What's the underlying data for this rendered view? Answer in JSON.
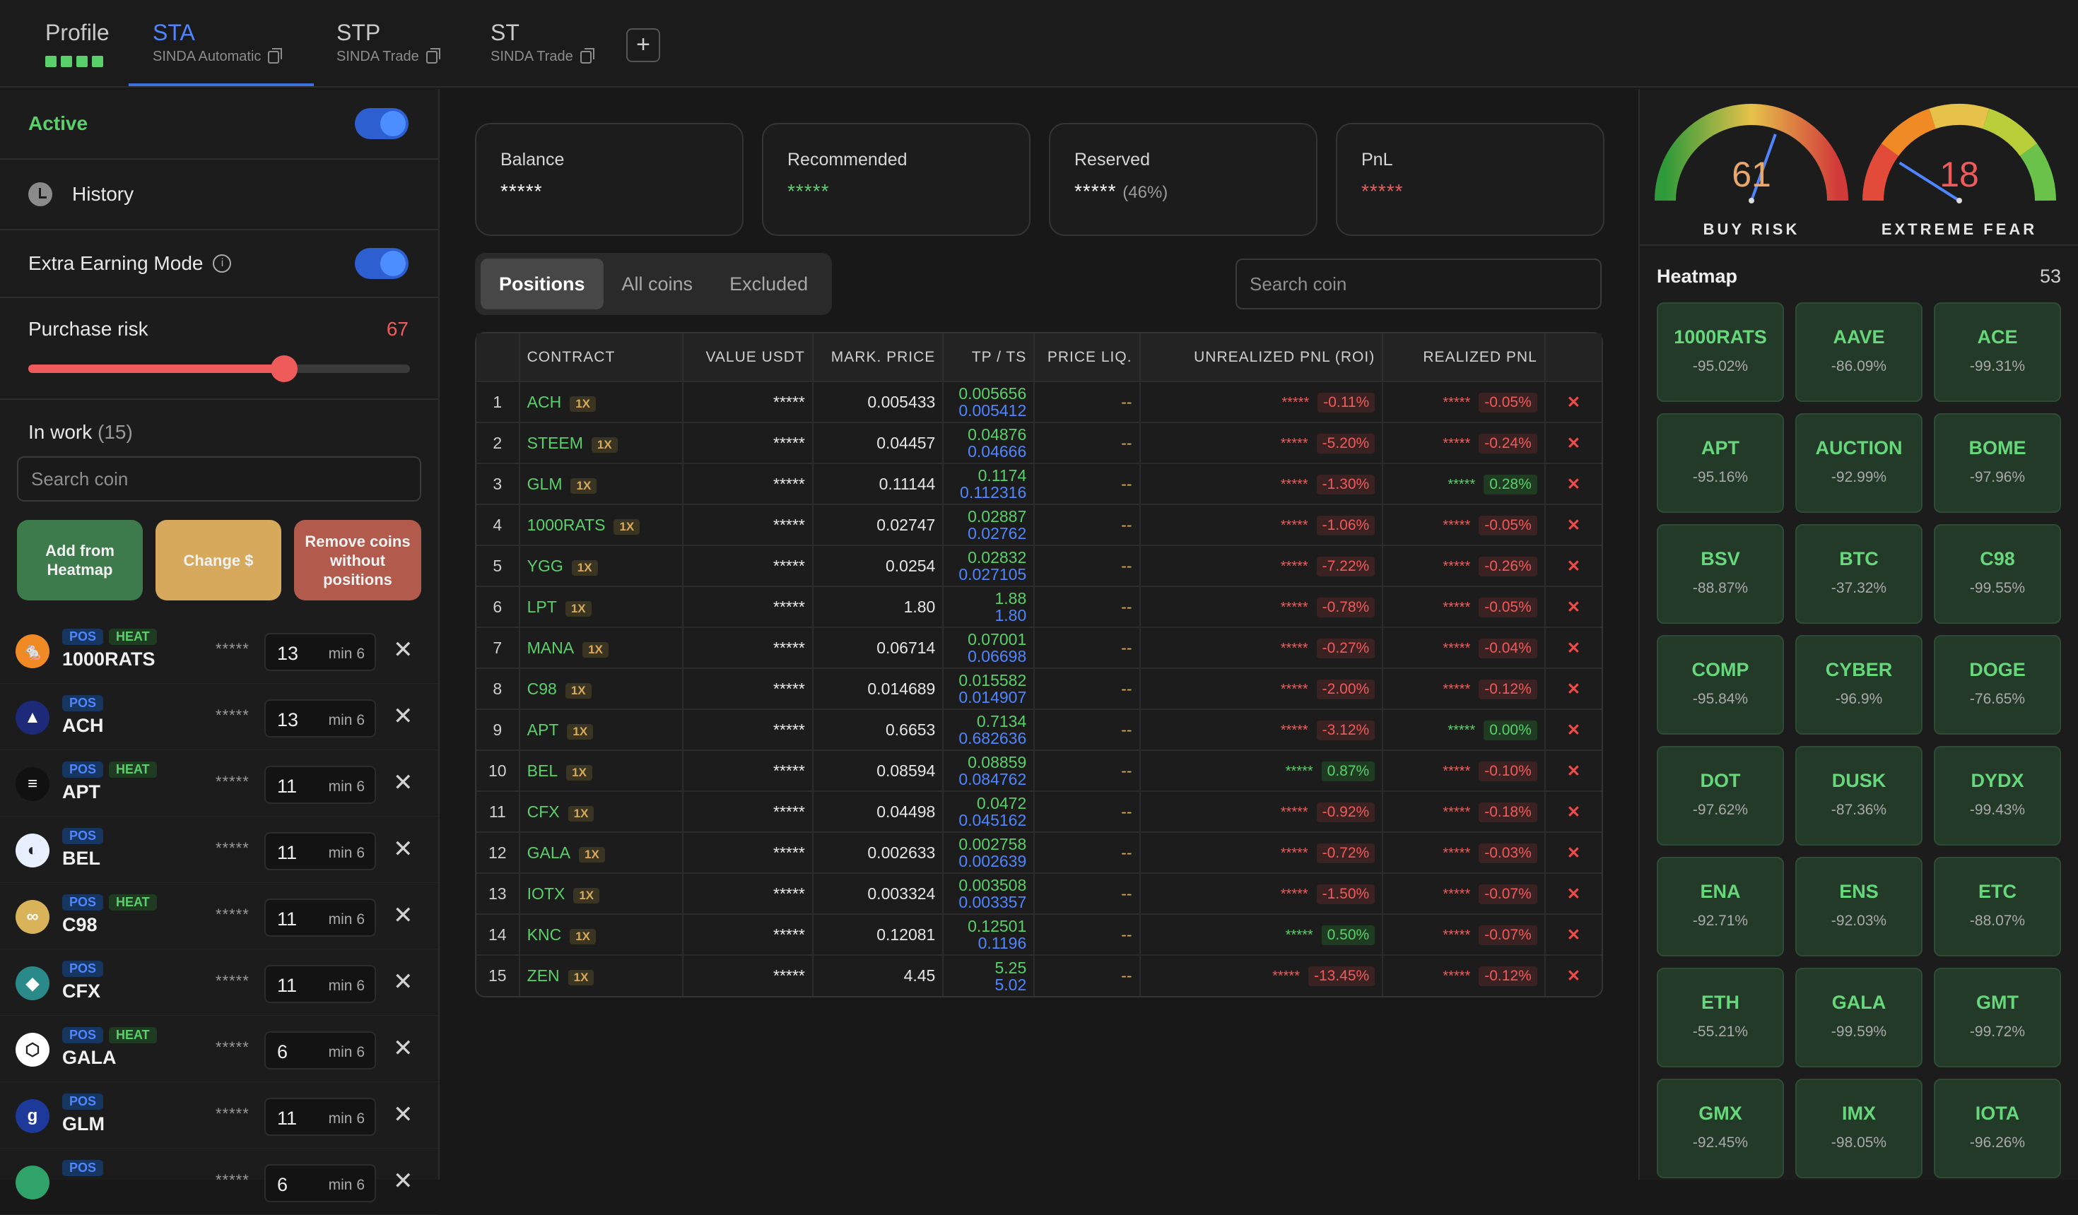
{
  "tabs": [
    {
      "title": "Profile",
      "subtitle": ""
    },
    {
      "title": "STA",
      "subtitle": "SINDA Automatic"
    },
    {
      "title": "STP",
      "subtitle": "SINDA Trade"
    },
    {
      "title": "ST",
      "subtitle": "SINDA Trade"
    }
  ],
  "add_tab_label": "+",
  "left": {
    "active_label": "Active",
    "history_label": "History",
    "extra_label": "Extra Earning Mode",
    "risk_label": "Purchase risk",
    "risk_value": "67",
    "risk_level": 0.67,
    "inwork_label": "In work",
    "inwork_count": "(15)",
    "search_placeholder": "Search coin",
    "btn_add": "Add from Heatmap",
    "btn_change": "Change $",
    "btn_remove": "Remove coins without positions",
    "coins": [
      {
        "name": "1000RATS",
        "tags": [
          "POS",
          "HEAT"
        ],
        "stars": "*****",
        "qty": "13",
        "min": "min 6",
        "color": "#f08a24",
        "glyph": "🐁"
      },
      {
        "name": "ACH",
        "tags": [
          "POS"
        ],
        "stars": "*****",
        "qty": "13",
        "min": "min 6",
        "color": "#1d2a7a",
        "glyph": "▲"
      },
      {
        "name": "APT",
        "tags": [
          "POS",
          "HEAT"
        ],
        "stars": "*****",
        "qty": "11",
        "min": "min 6",
        "color": "#111111",
        "glyph": "≡"
      },
      {
        "name": "BEL",
        "tags": [
          "POS"
        ],
        "stars": "*****",
        "qty": "11",
        "min": "min 6",
        "color": "#e8f0ff",
        "glyph": "◐"
      },
      {
        "name": "C98",
        "tags": [
          "POS",
          "HEAT"
        ],
        "stars": "*****",
        "qty": "11",
        "min": "min 6",
        "color": "#d9b35a",
        "glyph": "∞"
      },
      {
        "name": "CFX",
        "tags": [
          "POS"
        ],
        "stars": "*****",
        "qty": "11",
        "min": "min 6",
        "color": "#2a8a8a",
        "glyph": "◆"
      },
      {
        "name": "GALA",
        "tags": [
          "POS",
          "HEAT"
        ],
        "stars": "*****",
        "qty": "6",
        "min": "min 6",
        "color": "#ffffff",
        "glyph": "⬡"
      },
      {
        "name": "GLM",
        "tags": [
          "POS"
        ],
        "stars": "*****",
        "qty": "11",
        "min": "min 6",
        "color": "#1d3a9a",
        "glyph": "g"
      },
      {
        "name": "",
        "tags": [
          "POS"
        ],
        "stars": "*****",
        "qty": "6",
        "min": "min 6",
        "color": "#2fa36a",
        "glyph": ""
      }
    ]
  },
  "cards": [
    {
      "title": "Balance",
      "value": "*****",
      "suffix": "",
      "tone": "white"
    },
    {
      "title": "Recommended",
      "value": "*****",
      "suffix": "",
      "tone": "green"
    },
    {
      "title": "Reserved",
      "value": "*****",
      "suffix": "(46%)",
      "tone": "white"
    },
    {
      "title": "PnL",
      "value": "*****",
      "suffix": "",
      "tone": "red"
    }
  ],
  "segments": [
    "Positions",
    "All coins",
    "Excluded"
  ],
  "main_search_placeholder": "Search coin",
  "table": {
    "headers": [
      "",
      "CONTRACT",
      "VALUE USDT",
      "MARK. PRICE",
      "TP / TS",
      "PRICE LIQ.",
      "UNREALIZED PNL (ROI)",
      "REALIZED PNL",
      ""
    ],
    "rows": [
      {
        "n": "1",
        "c": "ACH",
        "lev": "1X",
        "v": "*****",
        "mp": "0.005433",
        "tp": "0.005656",
        "ts": "0.005412",
        "liq": "--",
        "us": "*****",
        "uroi": "-0.11%",
        "upos": false,
        "rs": "*****",
        "rpnl": "-0.05%",
        "rpos": false
      },
      {
        "n": "2",
        "c": "STEEM",
        "lev": "1X",
        "v": "*****",
        "mp": "0.04457",
        "tp": "0.04876",
        "ts": "0.04666",
        "liq": "--",
        "us": "*****",
        "uroi": "-5.20%",
        "upos": false,
        "rs": "*****",
        "rpnl": "-0.24%",
        "rpos": false
      },
      {
        "n": "3",
        "c": "GLM",
        "lev": "1X",
        "v": "*****",
        "mp": "0.11144",
        "tp": "0.1174",
        "ts": "0.112316",
        "liq": "--",
        "us": "*****",
        "uroi": "-1.30%",
        "upos": false,
        "rs": "*****",
        "rpnl": "0.28%",
        "rpos": true
      },
      {
        "n": "4",
        "c": "1000RATS",
        "lev": "1X",
        "v": "*****",
        "mp": "0.02747",
        "tp": "0.02887",
        "ts": "0.02762",
        "liq": "--",
        "us": "*****",
        "uroi": "-1.06%",
        "upos": false,
        "rs": "*****",
        "rpnl": "-0.05%",
        "rpos": false
      },
      {
        "n": "5",
        "c": "YGG",
        "lev": "1X",
        "v": "*****",
        "mp": "0.0254",
        "tp": "0.02832",
        "ts": "0.027105",
        "liq": "--",
        "us": "*****",
        "uroi": "-7.22%",
        "upos": false,
        "rs": "*****",
        "rpnl": "-0.26%",
        "rpos": false
      },
      {
        "n": "6",
        "c": "LPT",
        "lev": "1X",
        "v": "*****",
        "mp": "1.80",
        "tp": "1.88",
        "ts": "1.80",
        "liq": "--",
        "us": "*****",
        "uroi": "-0.78%",
        "upos": false,
        "rs": "*****",
        "rpnl": "-0.05%",
        "rpos": false
      },
      {
        "n": "7",
        "c": "MANA",
        "lev": "1X",
        "v": "*****",
        "mp": "0.06714",
        "tp": "0.07001",
        "ts": "0.06698",
        "liq": "--",
        "us": "*****",
        "uroi": "-0.27%",
        "upos": false,
        "rs": "*****",
        "rpnl": "-0.04%",
        "rpos": false
      },
      {
        "n": "8",
        "c": "C98",
        "lev": "1X",
        "v": "*****",
        "mp": "0.014689",
        "tp": "0.015582",
        "ts": "0.014907",
        "liq": "--",
        "us": "*****",
        "uroi": "-2.00%",
        "upos": false,
        "rs": "*****",
        "rpnl": "-0.12%",
        "rpos": false
      },
      {
        "n": "9",
        "c": "APT",
        "lev": "1X",
        "v": "*****",
        "mp": "0.6653",
        "tp": "0.7134",
        "ts": "0.682636",
        "liq": "--",
        "us": "*****",
        "uroi": "-3.12%",
        "upos": false,
        "rs": "*****",
        "rpnl": "0.00%",
        "rpos": true
      },
      {
        "n": "10",
        "c": "BEL",
        "lev": "1X",
        "v": "*****",
        "mp": "0.08594",
        "tp": "0.08859",
        "ts": "0.084762",
        "liq": "--",
        "us": "*****",
        "uroi": "0.87%",
        "upos": true,
        "rs": "*****",
        "rpnl": "-0.10%",
        "rpos": false
      },
      {
        "n": "11",
        "c": "CFX",
        "lev": "1X",
        "v": "*****",
        "mp": "0.04498",
        "tp": "0.0472",
        "ts": "0.045162",
        "liq": "--",
        "us": "*****",
        "uroi": "-0.92%",
        "upos": false,
        "rs": "*****",
        "rpnl": "-0.18%",
        "rpos": false
      },
      {
        "n": "12",
        "c": "GALA",
        "lev": "1X",
        "v": "*****",
        "mp": "0.002633",
        "tp": "0.002758",
        "ts": "0.002639",
        "liq": "--",
        "us": "*****",
        "uroi": "-0.72%",
        "upos": false,
        "rs": "*****",
        "rpnl": "-0.03%",
        "rpos": false
      },
      {
        "n": "13",
        "c": "IOTX",
        "lev": "1X",
        "v": "*****",
        "mp": "0.003324",
        "tp": "0.003508",
        "ts": "0.003357",
        "liq": "--",
        "us": "*****",
        "uroi": "-1.50%",
        "upos": false,
        "rs": "*****",
        "rpnl": "-0.07%",
        "rpos": false
      },
      {
        "n": "14",
        "c": "KNC",
        "lev": "1X",
        "v": "*****",
        "mp": "0.12081",
        "tp": "0.12501",
        "ts": "0.1196",
        "liq": "--",
        "us": "*****",
        "uroi": "0.50%",
        "upos": true,
        "rs": "*****",
        "rpnl": "-0.07%",
        "rpos": false
      },
      {
        "n": "15",
        "c": "ZEN",
        "lev": "1X",
        "v": "*****",
        "mp": "4.45",
        "tp": "5.25",
        "ts": "5.02",
        "liq": "--",
        "us": "*****",
        "uroi": "-13.45%",
        "upos": false,
        "rs": "*****",
        "rpnl": "-0.12%",
        "rpos": false
      }
    ],
    "delete_glyph": "✕"
  },
  "gauges": [
    {
      "value": "61",
      "label": "BUY RISK",
      "level": 0.61,
      "color": "#e8a86a"
    },
    {
      "value": "18",
      "label": "EXTREME FEAR",
      "level": 0.18,
      "color": "#ef5b5b"
    }
  ],
  "heatmap": {
    "title": "Heatmap",
    "count": "53",
    "cells": [
      {
        "s": "1000RATS",
        "p": "-95.02%"
      },
      {
        "s": "AAVE",
        "p": "-86.09%"
      },
      {
        "s": "ACE",
        "p": "-99.31%"
      },
      {
        "s": "APT",
        "p": "-95.16%"
      },
      {
        "s": "AUCTION",
        "p": "-92.99%"
      },
      {
        "s": "BOME",
        "p": "-97.96%"
      },
      {
        "s": "BSV",
        "p": "-88.87%"
      },
      {
        "s": "BTC",
        "p": "-37.32%"
      },
      {
        "s": "C98",
        "p": "-99.55%"
      },
      {
        "s": "COMP",
        "p": "-95.84%"
      },
      {
        "s": "CYBER",
        "p": "-96.9%"
      },
      {
        "s": "DOGE",
        "p": "-76.65%"
      },
      {
        "s": "DOT",
        "p": "-97.62%"
      },
      {
        "s": "DUSK",
        "p": "-87.36%"
      },
      {
        "s": "DYDX",
        "p": "-99.43%"
      },
      {
        "s": "ENA",
        "p": "-92.71%"
      },
      {
        "s": "ENS",
        "p": "-92.03%"
      },
      {
        "s": "ETC",
        "p": "-88.07%"
      },
      {
        "s": "ETH",
        "p": "-55.21%"
      },
      {
        "s": "GALA",
        "p": "-99.59%"
      },
      {
        "s": "GMT",
        "p": "-99.72%"
      },
      {
        "s": "GMX",
        "p": "-92.45%"
      },
      {
        "s": "IMX",
        "p": "-98.05%"
      },
      {
        "s": "IOTA",
        "p": "-96.26%"
      }
    ]
  }
}
